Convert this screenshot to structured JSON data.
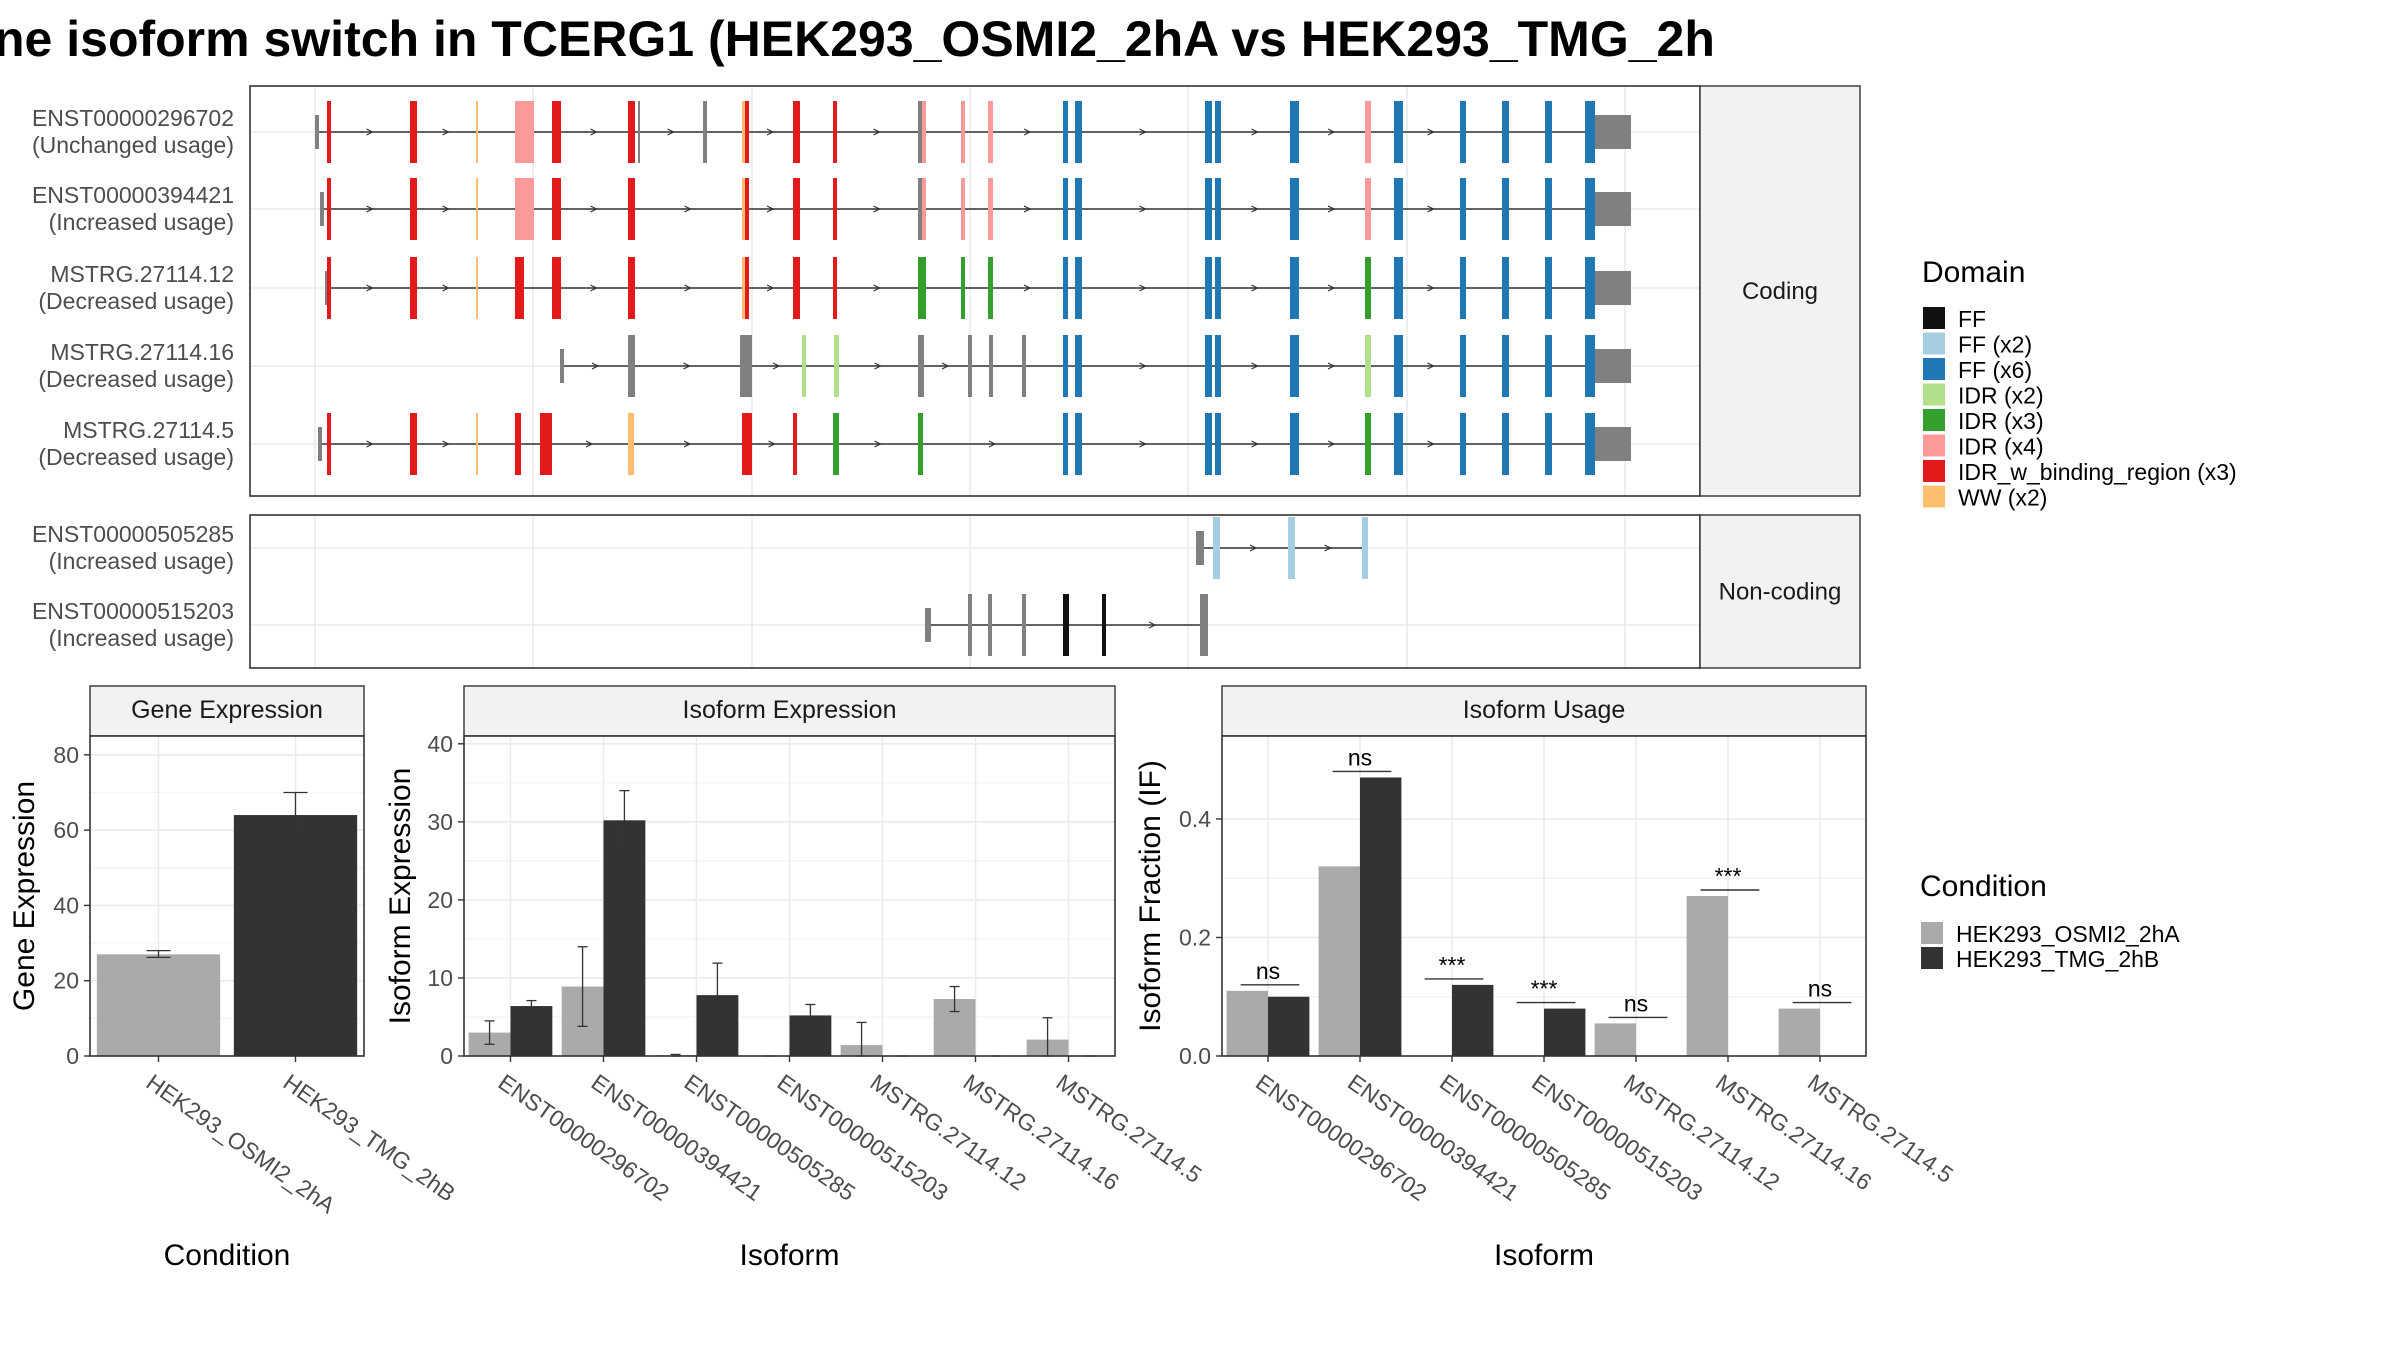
{
  "title": "ne isoform switch in TCERG1 (HEK293_OSMI2_2hA vs HEK293_TMG_2h",
  "colors": {
    "FF": "#111111",
    "FF (x2)": "#a6cee3",
    "FF (x6)": "#1f78b4",
    "IDR (x2)": "#b2df8a",
    "IDR (x3)": "#33a02c",
    "IDR (x4)": "#fb9a99",
    "IDR_w_binding_region (x3)": "#e31a1c",
    "WW (x2)": "#fdbf6f",
    "none": "#808080",
    "cond_a": "#aaaaaa",
    "cond_b": "#333333",
    "strip_bg": "#f2f2f2"
  },
  "structure": {
    "facets": [
      {
        "label": "Coding",
        "transcripts": [
          {
            "id": "ENST00000296702",
            "usage": "(Unchanged usage)",
            "coding": true,
            "exons": [
              [
                "none",
                4
              ],
              [
                "IDR_w_binding_region (x3)",
                4
              ],
              [
                "IDR_w_binding_region (x3)",
                7
              ],
              [
                "WW (x2)",
                2
              ],
              [
                "IDR (x4)",
                19
              ],
              [
                "IDR_w_binding_region (x3)",
                9
              ],
              [
                "IDR_w_binding_region (x3)",
                7
              ],
              [
                "none",
                2
              ],
              [
                "none",
                4
              ],
              [
                "WW (x2)",
                6
              ],
              [
                "IDR_w_binding_region (x3)",
                4
              ],
              [
                "IDR_w_binding_region (x3)",
                7
              ],
              [
                "IDR_w_binding_region (x3)",
                4
              ],
              [
                "none",
                6
              ],
              [
                "IDR (x4)",
                4
              ],
              [
                "IDR (x4)",
                4
              ],
              [
                "IDR (x4)",
                5
              ],
              [
                "FF (x6)",
                5
              ],
              [
                "FF (x6)",
                7
              ],
              [
                "FF (x6)",
                7
              ],
              [
                "FF (x6)",
                6
              ],
              [
                "FF (x6)",
                9
              ],
              [
                "IDR (x4)",
                6
              ],
              [
                "FF (x6)",
                9
              ],
              [
                "FF (x6)",
                6
              ],
              [
                "FF (x6)",
                7
              ],
              [
                "FF (x6)",
                7
              ],
              [
                "FF (x6)",
                10
              ]
            ]
          },
          {
            "id": "ENST00000394421",
            "usage": "(Increased usage)",
            "coding": true,
            "exons": [
              [
                "none",
                4
              ],
              [
                "IDR_w_binding_region (x3)",
                4
              ],
              [
                "IDR_w_binding_region (x3)",
                7
              ],
              [
                "WW (x2)",
                2
              ],
              [
                "IDR (x4)",
                19
              ],
              [
                "IDR_w_binding_region (x3)",
                9
              ],
              [
                "IDR_w_binding_region (x3)",
                7
              ],
              [
                "WW (x2)",
                6
              ],
              [
                "IDR_w_binding_region (x3)",
                4
              ],
              [
                "IDR_w_binding_region (x3)",
                7
              ],
              [
                "IDR_w_binding_region (x3)",
                4
              ],
              [
                "none",
                6
              ],
              [
                "IDR (x4)",
                4
              ],
              [
                "IDR (x4)",
                4
              ],
              [
                "IDR (x4)",
                5
              ],
              [
                "FF (x6)",
                5
              ],
              [
                "FF (x6)",
                7
              ],
              [
                "FF (x6)",
                7
              ],
              [
                "FF (x6)",
                6
              ],
              [
                "FF (x6)",
                9
              ],
              [
                "IDR (x4)",
                6
              ],
              [
                "FF (x6)",
                9
              ],
              [
                "FF (x6)",
                6
              ],
              [
                "FF (x6)",
                7
              ],
              [
                "FF (x6)",
                7
              ],
              [
                "FF (x6)",
                10
              ]
            ]
          },
          {
            "id": "MSTRG.27114.12",
            "usage": "(Decreased usage)",
            "coding": true,
            "exons": [
              [
                "none",
                4
              ],
              [
                "IDR_w_binding_region (x3)",
                4
              ],
              [
                "IDR_w_binding_region (x3)",
                7
              ],
              [
                "WW (x2)",
                2
              ],
              [
                "IDR_w_binding_region (x3)",
                9
              ],
              [
                "IDR_w_binding_region (x3)",
                9
              ],
              [
                "IDR_w_binding_region (x3)",
                7
              ],
              [
                "WW (x2)",
                6
              ],
              [
                "IDR_w_binding_region (x3)",
                4
              ],
              [
                "IDR_w_binding_region (x3)",
                7
              ],
              [
                "IDR_w_binding_region (x3)",
                4
              ],
              [
                "IDR (x3)",
                6
              ],
              [
                "IDR (x3)",
                4
              ],
              [
                "IDR (x3)",
                4
              ],
              [
                "IDR (x3)",
                5
              ],
              [
                "FF (x6)",
                5
              ],
              [
                "FF (x6)",
                7
              ],
              [
                "FF (x6)",
                7
              ],
              [
                "FF (x6)",
                6
              ],
              [
                "FF (x6)",
                9
              ],
              [
                "IDR (x3)",
                6
              ],
              [
                "FF (x6)",
                9
              ],
              [
                "FF (x6)",
                6
              ],
              [
                "FF (x6)",
                7
              ],
              [
                "FF (x6)",
                7
              ],
              [
                "FF (x6)",
                10
              ]
            ]
          },
          {
            "id": "MSTRG.27114.16",
            "usage": "(Decreased usage)",
            "coding": true,
            "exons": [
              [
                "none",
                4
              ],
              [
                "none",
                7
              ],
              [
                "none",
                12
              ],
              [
                "IDR (x2)",
                4
              ],
              [
                "IDR (x2)",
                5
              ],
              [
                "none",
                6
              ],
              [
                "none",
                4
              ],
              [
                "none",
                4
              ],
              [
                "none",
                4
              ],
              [
                "FF (x6)",
                5
              ],
              [
                "FF (x6)",
                7
              ],
              [
                "FF (x6)",
                7
              ],
              [
                "FF (x6)",
                6
              ],
              [
                "FF (x6)",
                9
              ],
              [
                "IDR (x2)",
                6
              ],
              [
                "FF (x6)",
                9
              ],
              [
                "FF (x6)",
                6
              ],
              [
                "FF (x6)",
                7
              ],
              [
                "FF (x6)",
                7
              ],
              [
                "FF (x6)",
                10
              ]
            ]
          },
          {
            "id": "MSTRG.27114.5",
            "usage": "(Decreased usage)",
            "coding": true,
            "exons": [
              [
                "none",
                4
              ],
              [
                "IDR_w_binding_region (x3)",
                4
              ],
              [
                "IDR_w_binding_region (x3)",
                7
              ],
              [
                "WW (x2)",
                2
              ],
              [
                "IDR_w_binding_region (x3)",
                6
              ],
              [
                "IDR_w_binding_region (x3)",
                12
              ],
              [
                "WW (x2)",
                6
              ],
              [
                "IDR_w_binding_region (x3)",
                4
              ],
              [
                "IDR_w_binding_region (x3)",
                7
              ],
              [
                "IDR_w_binding_region (x3)",
                4
              ],
              [
                "IDR (x3)",
                6
              ],
              [
                "IDR (x3)",
                5
              ],
              [
                "FF (x6)",
                5
              ],
              [
                "FF (x6)",
                7
              ],
              [
                "FF (x6)",
                7
              ],
              [
                "FF (x6)",
                6
              ],
              [
                "FF (x6)",
                9
              ],
              [
                "IDR (x3)",
                6
              ],
              [
                "FF (x6)",
                9
              ],
              [
                "FF (x6)",
                6
              ],
              [
                "FF (x6)",
                7
              ],
              [
                "FF (x6)",
                7
              ],
              [
                "FF (x6)",
                10
              ]
            ]
          }
        ]
      },
      {
        "label": "Non-coding",
        "transcripts": [
          {
            "id": "ENST00000505285",
            "usage": "(Increased usage)",
            "coding": false,
            "exons": [
              [
                "none",
                8
              ],
              [
                "FF (x2)",
                7
              ],
              [
                "FF (x2)",
                7
              ],
              [
                "FF (x2)",
                6
              ]
            ]
          },
          {
            "id": "ENST00000515203",
            "usage": "(Increased usage)",
            "coding": false,
            "exons": [
              [
                "none",
                6
              ],
              [
                "none",
                4
              ],
              [
                "none",
                4
              ],
              [
                "none",
                4
              ],
              [
                "FF",
                6
              ],
              [
                "FF",
                4
              ],
              [
                "none",
                8
              ]
            ]
          }
        ]
      }
    ]
  },
  "legend_domain": {
    "title": "Domain",
    "items": [
      "FF",
      "FF (x2)",
      "FF (x6)",
      "IDR (x2)",
      "IDR (x3)",
      "IDR (x4)",
      "IDR_w_binding_region (x3)",
      "WW (x2)"
    ]
  },
  "legend_condition": {
    "title": "Condition",
    "items": [
      "HEK293_OSMI2_2hA",
      "HEK293_TMG_2hB"
    ]
  },
  "chart_data": [
    {
      "type": "bar",
      "title": "Gene Expression",
      "xlabel": "Condition",
      "ylabel": "Gene Expression",
      "ylim": [
        0,
        85
      ],
      "yticks": [
        0,
        20,
        40,
        60,
        80
      ],
      "categories": [
        "HEK293_OSMI2_2hA",
        "HEK293_TMG_2hB"
      ],
      "values": [
        27,
        64
      ],
      "errors": [
        [
          26.2,
          28.0
        ],
        [
          58.5,
          70.0
        ]
      ]
    },
    {
      "type": "bar",
      "title": "Isoform Expression",
      "xlabel": "Isoform",
      "ylabel": "Isoform Expression",
      "ylim": [
        0,
        41
      ],
      "yticks": [
        0,
        10,
        20,
        30,
        40
      ],
      "categories": [
        "ENST00000296702",
        "ENST00000394421",
        "ENST00000505285",
        "ENST00000515203",
        "MSTRG.27114.12",
        "MSTRG.27114.16",
        "MSTRG.27114.5"
      ],
      "series": [
        {
          "name": "HEK293_OSMI2_2hA",
          "values": [
            3.0,
            8.9,
            0.1,
            0.0,
            1.4,
            7.3,
            2.1
          ],
          "errors": [
            [
              1.5,
              4.5
            ],
            [
              3.8,
              14.0
            ],
            [
              0.0,
              0.2
            ],
            [
              0.0,
              0.0
            ],
            [
              0.0,
              4.3
            ],
            [
              5.7,
              8.9
            ],
            [
              0.0,
              4.9
            ]
          ]
        },
        {
          "name": "HEK293_TMG_2hB",
          "values": [
            6.4,
            30.2,
            7.8,
            5.2,
            0.0,
            0.0,
            0.0
          ],
          "errors": [
            [
              5.8,
              7.1
            ],
            [
              26.5,
              34.0
            ],
            [
              3.7,
              11.9
            ],
            [
              3.9,
              6.6
            ],
            [
              0.0,
              0.0
            ],
            [
              0.0,
              0.0
            ],
            [
              0.0,
              0.0
            ]
          ]
        }
      ]
    },
    {
      "type": "bar",
      "title": "Isoform Usage",
      "xlabel": "Isoform",
      "ylabel": "Isoform Fraction (IF)",
      "ylim": [
        0,
        0.54
      ],
      "yticks": [
        0.0,
        0.2,
        0.4
      ],
      "tick_labels": [
        "0.0",
        "0.2",
        "0.4"
      ],
      "categories": [
        "ENST00000296702",
        "ENST00000394421",
        "ENST00000505285",
        "ENST00000515203",
        "MSTRG.27114.12",
        "MSTRG.27114.16",
        "MSTRG.27114.5"
      ],
      "series": [
        {
          "name": "HEK293_OSMI2_2hA",
          "values": [
            0.11,
            0.32,
            0.0,
            0.0,
            0.055,
            0.27,
            0.08
          ]
        },
        {
          "name": "HEK293_TMG_2hB",
          "values": [
            0.1,
            0.47,
            0.12,
            0.08,
            0.0,
            0.0,
            0.0
          ]
        }
      ],
      "significance": [
        "ns",
        "ns",
        "***",
        "***",
        "ns",
        "***",
        "ns"
      ]
    }
  ]
}
